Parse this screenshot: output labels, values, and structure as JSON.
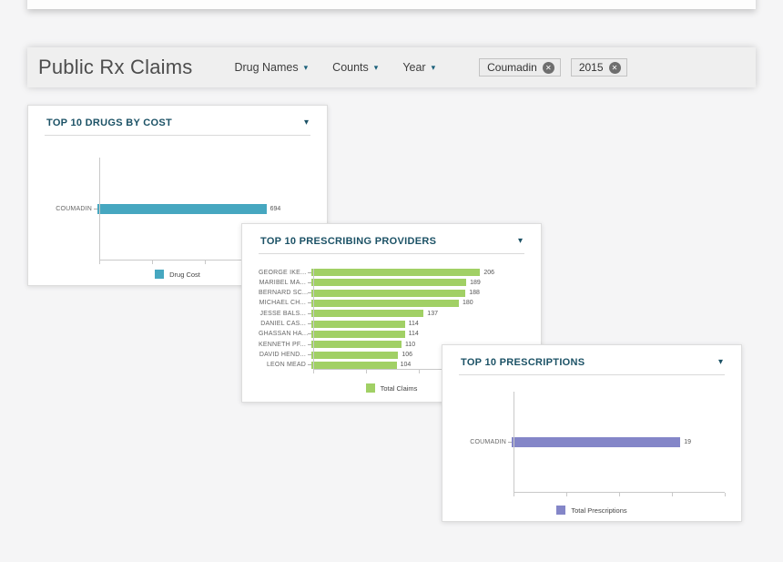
{
  "page": {
    "background": "#f5f5f6"
  },
  "icons": {
    "caret_down": "▾",
    "close_x": "✕"
  },
  "header": {
    "title": "Public Rx Claims",
    "dropdowns": [
      {
        "label": "Drug Names"
      },
      {
        "label": "Counts"
      },
      {
        "label": "Year"
      }
    ],
    "filters": [
      {
        "label": "Coumadin"
      },
      {
        "label": "2015"
      }
    ]
  },
  "colors": {
    "drug_cost": "#46a7c0",
    "total_claims": "#a1d065",
    "total_prescriptions": "#8486c8",
    "card_title": "#1c5266",
    "axis": "#c9c9c9"
  },
  "chart_data": [
    {
      "type": "bar",
      "orientation": "horizontal",
      "title": "TOP 10 DRUGS BY COST",
      "categories": [
        "COUMADIN"
      ],
      "values": [
        694
      ],
      "value_labels": true,
      "legend": "Drug Cost",
      "legend_position": "bottom",
      "color": "#46a7c0",
      "xlabel": "",
      "ylabel": "",
      "xlim": [
        0,
        875
      ],
      "grid": false
    },
    {
      "type": "bar",
      "orientation": "horizontal",
      "title": "TOP 10 PRESCRIBING PROVIDERS",
      "categories": [
        "GEORGE IKE...",
        "MARIBEL MA...",
        "BERNARD SC...",
        "MICHAEL CH...",
        "JESSE BALS...",
        "DANIEL CAS...",
        "GHASSAN HA...",
        "KENNETH PF...",
        "DAVID HEND...",
        "LEON MEAD"
      ],
      "values": [
        206,
        189,
        188,
        180,
        137,
        114,
        114,
        110,
        106,
        104
      ],
      "value_labels": true,
      "legend": "Total Claims",
      "legend_position": "bottom",
      "color": "#a1d065",
      "xlabel": "",
      "ylabel": "",
      "xlim": [
        0,
        260
      ],
      "grid": false
    },
    {
      "type": "bar",
      "orientation": "horizontal",
      "title": "TOP 10 PRESCRIPTIONS",
      "categories": [
        "COUMADIN"
      ],
      "values": [
        19
      ],
      "value_labels": true,
      "legend": "Total Prescriptions",
      "legend_position": "bottom",
      "color": "#8486c8",
      "xlabel": "",
      "ylabel": "",
      "xlim": [
        0,
        24
      ],
      "grid": false
    }
  ]
}
